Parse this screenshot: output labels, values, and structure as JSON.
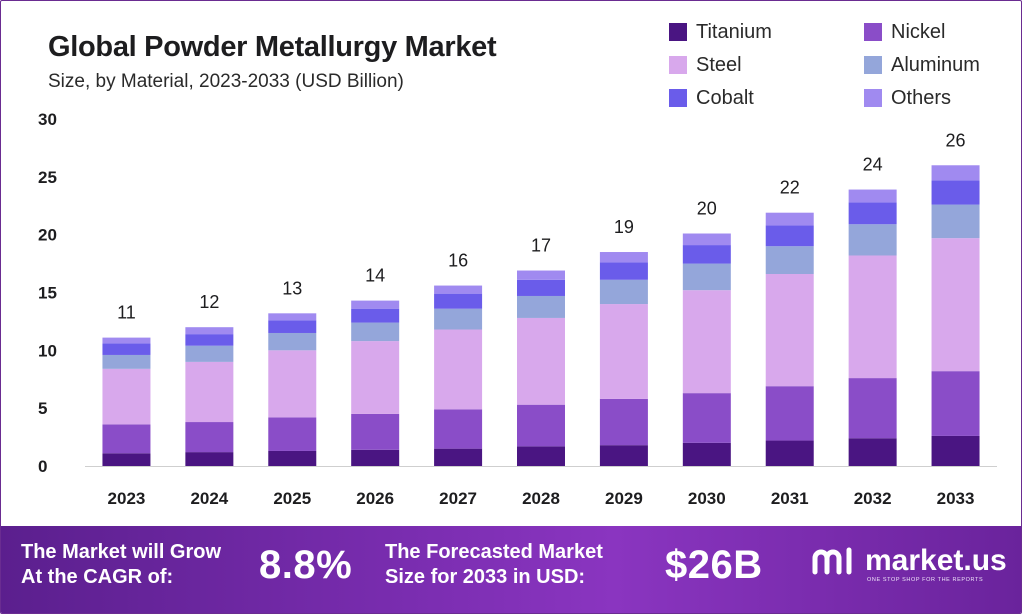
{
  "header": {
    "title": "Global Powder Metallurgy Market",
    "subtitle": "Size, by Material, 2023-2033 (USD Billion)"
  },
  "colors": {
    "Titanium": "#4a1582",
    "Nickel": "#8a4dc8",
    "Steel": "#d8a8ec",
    "Aluminum": "#94a6da",
    "Cobalt": "#6a5cea",
    "Others": "#a08af0"
  },
  "legend": {
    "items": [
      "Titanium",
      "Nickel",
      "Steel",
      "Aluminum",
      "Cobalt",
      "Others"
    ]
  },
  "chart_data": {
    "type": "bar",
    "stacked": true,
    "title": "Global Powder Metallurgy Market",
    "subtitle": "Size, by Material, 2023-2033 (USD Billion)",
    "xlabel": "",
    "ylabel": "",
    "ylim": [
      0,
      30
    ],
    "yticks": [
      0,
      5,
      10,
      15,
      20,
      25,
      30
    ],
    "categories": [
      "2023",
      "2024",
      "2025",
      "2026",
      "2027",
      "2028",
      "2029",
      "2030",
      "2031",
      "2032",
      "2033"
    ],
    "totals_labels": [
      "11",
      "12",
      "13",
      "14",
      "16",
      "17",
      "19",
      "20",
      "22",
      "24",
      "26"
    ],
    "series": [
      {
        "name": "Titanium",
        "values": [
          1.1,
          1.2,
          1.3,
          1.4,
          1.5,
          1.7,
          1.8,
          2.0,
          2.2,
          2.4,
          2.6
        ]
      },
      {
        "name": "Nickel",
        "values": [
          2.5,
          2.6,
          2.9,
          3.1,
          3.4,
          3.6,
          4.0,
          4.3,
          4.7,
          5.2,
          5.6
        ]
      },
      {
        "name": "Steel",
        "values": [
          4.8,
          5.2,
          5.8,
          6.3,
          6.9,
          7.5,
          8.2,
          8.9,
          9.7,
          10.6,
          11.5
        ]
      },
      {
        "name": "Aluminum",
        "values": [
          1.2,
          1.4,
          1.5,
          1.6,
          1.8,
          1.9,
          2.1,
          2.3,
          2.4,
          2.7,
          2.9
        ]
      },
      {
        "name": "Cobalt",
        "values": [
          1.0,
          1.0,
          1.1,
          1.2,
          1.3,
          1.4,
          1.5,
          1.6,
          1.8,
          1.9,
          2.1
        ]
      },
      {
        "name": "Others",
        "values": [
          0.5,
          0.6,
          0.6,
          0.7,
          0.7,
          0.8,
          0.9,
          1.0,
          1.1,
          1.1,
          1.3
        ]
      }
    ]
  },
  "banner": {
    "cagr_label": "The Market will Grow\nAt the CAGR of:",
    "cagr_value": "8.8%",
    "forecast_label": "The Forecasted Market\nSize for 2033 in USD:",
    "forecast_value": "$26B",
    "brand_name": "market.us",
    "brand_tagline": "ONE STOP SHOP FOR THE REPORTS"
  }
}
